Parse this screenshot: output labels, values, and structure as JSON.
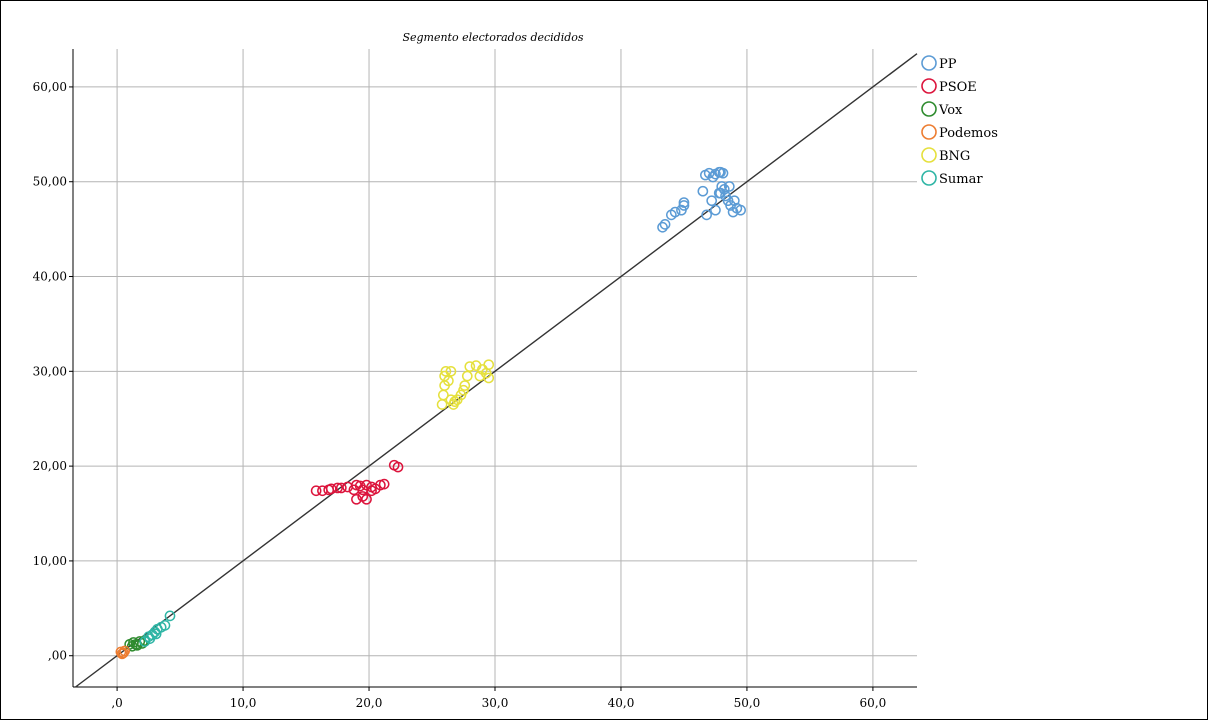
{
  "chart_data": {
    "type": "scatter",
    "title": "Segmento electorados decididos",
    "xlabel": "",
    "ylabel": "",
    "xlim": [
      -3.5,
      63.5
    ],
    "ylim": [
      -3.3,
      64
    ],
    "x_ticks": [
      0,
      10,
      20,
      30,
      40,
      50,
      60
    ],
    "x_tick_labels": [
      ",0",
      "10,0",
      "20,0",
      "30,0",
      "40,0",
      "50,0",
      "60,0"
    ],
    "y_ticks": [
      0,
      10,
      20,
      30,
      40,
      50,
      60
    ],
    "y_tick_labels": [
      ",00",
      "10,00",
      "20,00",
      "30,00",
      "40,00",
      "50,00",
      "60,00"
    ],
    "grid": true,
    "reference_line": "y = x",
    "legend_position": "right",
    "series": [
      {
        "name": "PP",
        "color": "#5b9bd5",
        "points": [
          [
            43.3,
            45.2
          ],
          [
            43.5,
            45.5
          ],
          [
            44.0,
            46.5
          ],
          [
            44.3,
            46.8
          ],
          [
            44.8,
            47.0
          ],
          [
            45.0,
            47.5
          ],
          [
            45.0,
            47.8
          ],
          [
            46.5,
            49.0
          ],
          [
            46.7,
            50.7
          ],
          [
            47.0,
            50.9
          ],
          [
            47.3,
            50.5
          ],
          [
            47.5,
            50.8
          ],
          [
            47.8,
            51.0
          ],
          [
            47.9,
            51.0
          ],
          [
            48.1,
            50.9
          ],
          [
            46.8,
            46.5
          ],
          [
            47.2,
            48.0
          ],
          [
            47.5,
            47.0
          ],
          [
            47.8,
            48.8
          ],
          [
            48.0,
            49.5
          ],
          [
            48.2,
            49.2
          ],
          [
            48.5,
            48.0
          ],
          [
            48.7,
            47.5
          ],
          [
            48.9,
            46.8
          ],
          [
            49.2,
            47.2
          ],
          [
            49.5,
            47.0
          ],
          [
            49.0,
            48.0
          ],
          [
            48.6,
            49.5
          ],
          [
            48.3,
            48.5
          ],
          [
            47.9,
            48.8
          ]
        ]
      },
      {
        "name": "PSOE",
        "color": "#dc143c",
        "points": [
          [
            15.8,
            17.4
          ],
          [
            16.3,
            17.4
          ],
          [
            16.8,
            17.5
          ],
          [
            17.0,
            17.6
          ],
          [
            17.5,
            17.7
          ],
          [
            17.8,
            17.7
          ],
          [
            18.3,
            17.8
          ],
          [
            18.8,
            17.5
          ],
          [
            19.0,
            18.0
          ],
          [
            19.3,
            17.9
          ],
          [
            19.5,
            17.5
          ],
          [
            19.8,
            18.0
          ],
          [
            20.2,
            17.8
          ],
          [
            20.5,
            17.6
          ],
          [
            20.9,
            18.0
          ],
          [
            21.2,
            18.1
          ],
          [
            19.0,
            16.5
          ],
          [
            19.5,
            16.8
          ],
          [
            19.8,
            16.5
          ],
          [
            20.2,
            17.4
          ],
          [
            22.0,
            20.1
          ],
          [
            22.3,
            19.9
          ]
        ]
      },
      {
        "name": "Vox",
        "color": "#2e8b2e",
        "points": [
          [
            1.0,
            1.2
          ],
          [
            1.3,
            1.4
          ],
          [
            1.5,
            1.2
          ],
          [
            1.8,
            1.5
          ],
          [
            2.0,
            1.3
          ],
          [
            2.2,
            1.6
          ],
          [
            1.2,
            1.0
          ],
          [
            1.6,
            1.1
          ]
        ]
      },
      {
        "name": "Podemos",
        "color": "#ed7d31",
        "points": [
          [
            0.3,
            0.4
          ],
          [
            0.5,
            0.3
          ],
          [
            0.6,
            0.5
          ],
          [
            0.4,
            0.2
          ]
        ]
      },
      {
        "name": "BNG",
        "color": "#e5e03c",
        "points": [
          [
            25.8,
            26.5
          ],
          [
            25.9,
            27.5
          ],
          [
            26.0,
            28.5
          ],
          [
            26.0,
            29.5
          ],
          [
            26.1,
            30.0
          ],
          [
            26.3,
            29.0
          ],
          [
            26.5,
            30.0
          ],
          [
            26.5,
            27.0
          ],
          [
            26.8,
            26.8
          ],
          [
            27.0,
            27.0
          ],
          [
            27.3,
            27.5
          ],
          [
            27.5,
            28.0
          ],
          [
            27.8,
            29.5
          ],
          [
            28.0,
            30.5
          ],
          [
            28.5,
            30.6
          ],
          [
            29.0,
            30.2
          ],
          [
            29.3,
            29.8
          ],
          [
            29.5,
            30.7
          ],
          [
            29.5,
            29.3
          ],
          [
            28.8,
            29.5
          ],
          [
            27.6,
            28.5
          ],
          [
            26.7,
            26.5
          ]
        ]
      },
      {
        "name": "Sumar",
        "color": "#2eb5a5",
        "points": [
          [
            2.2,
            1.5
          ],
          [
            2.5,
            2.0
          ],
          [
            2.8,
            2.2
          ],
          [
            3.0,
            2.5
          ],
          [
            3.2,
            2.8
          ],
          [
            3.5,
            3.0
          ],
          [
            3.8,
            3.2
          ],
          [
            4.2,
            4.2
          ],
          [
            2.6,
            1.8
          ],
          [
            3.1,
            2.3
          ]
        ]
      }
    ]
  }
}
